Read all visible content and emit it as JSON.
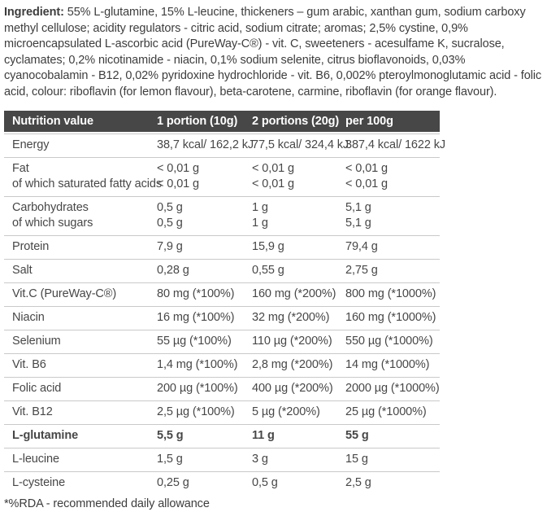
{
  "ingredient": {
    "label": "Ingredient:",
    "text": " 55% L-glutamine, 15% L-leucine, thickeners – gum arabic, xanthan gum, sodium carboxy methyl cellulose; acidity regulators - citric acid, sodium citrate; aromas; 2,5% cystine, 0,9% microencapsulated L-ascorbic acid (PureWay-C®) - vit. C, sweeteners - acesulfame K, sucralose, cyclamates; 0,2% nicotinamide - niacin, 0,1% sodium selenite, citrus bioflavonoids, 0,03% cyanocobalamin - B12, 0,02% pyridoxine hydrochloride - vit. B6, 0,002% pteroylmonoglutamic acid - folic acid, colour: riboflavin (for lemon flavour), beta-carotene, carmine, riboflavin (for orange flavour)."
  },
  "table": {
    "headers": [
      "Nutrition value",
      "1 portion (10g)",
      "2 portions (20g)",
      "per 100g"
    ],
    "rows": [
      {
        "label": "Energy",
        "values": [
          "38,7 kcal/ 162,2 kJ",
          "77,5 kcal/ 324,4 kJ",
          "387,4 kcal/ 1622 kJ"
        ]
      },
      {
        "label": "Fat",
        "sublabel": "of which saturated fatty acids",
        "values": [
          "< 0,01 g",
          "< 0,01 g",
          "< 0,01 g"
        ],
        "subvalues": [
          "< 0,01 g",
          "< 0,01 g",
          "< 0,01 g"
        ]
      },
      {
        "label": "Carbohydrates",
        "sublabel": "of which sugars",
        "values": [
          "0,5 g",
          "1 g",
          "5,1 g"
        ],
        "subvalues": [
          "0,5 g",
          "1 g",
          "5,1 g"
        ]
      },
      {
        "label": "Protein",
        "values": [
          "7,9 g",
          "15,9 g",
          "79,4 g"
        ]
      },
      {
        "label": "Salt",
        "values": [
          "0,28 g",
          "0,55 g",
          "2,75 g"
        ]
      },
      {
        "label": "Vit.C (PureWay-C®)",
        "values": [
          "80 mg (*100%)",
          "160 mg (*200%)",
          "800 mg (*1000%)"
        ]
      },
      {
        "label": "Niacin",
        "values": [
          "16 mg (*100%)",
          "32 mg (*200%)",
          "160 mg (*1000%)"
        ]
      },
      {
        "label": "Selenium",
        "values": [
          "55 µg (*100%)",
          "110 µg (*200%)",
          "550 µg (*1000%)"
        ]
      },
      {
        "label": "Vit. B6",
        "values": [
          "1,4 mg (*100%)",
          "2,8 mg (*200%)",
          "14 mg (*1000%)"
        ]
      },
      {
        "label": "Folic acid",
        "values": [
          "200 µg (*100%)",
          "400 µg (*200%)",
          "2000 µg (*1000%)"
        ]
      },
      {
        "label": "Vit. B12",
        "values": [
          "2,5 µg (*100%)",
          "5 µg (*200%)",
          "25 µg (*1000%)"
        ]
      },
      {
        "label": "L-glutamine",
        "values": [
          "5,5 g",
          "11 g",
          "55 g"
        ]
      },
      {
        "label": "L-leucine",
        "values": [
          "1,5 g",
          "3 g",
          "15 g"
        ]
      },
      {
        "label": "L-cysteine",
        "values": [
          "0,25 g",
          "0,5 g",
          "2,5 g"
        ]
      }
    ],
    "footnote": "*%RDA - recommended daily allowance"
  },
  "colors": {
    "header_bg": "#474747",
    "header_text": "#ffffff",
    "separator": "#c9c9c9",
    "body_text": "#3d3d3d"
  }
}
